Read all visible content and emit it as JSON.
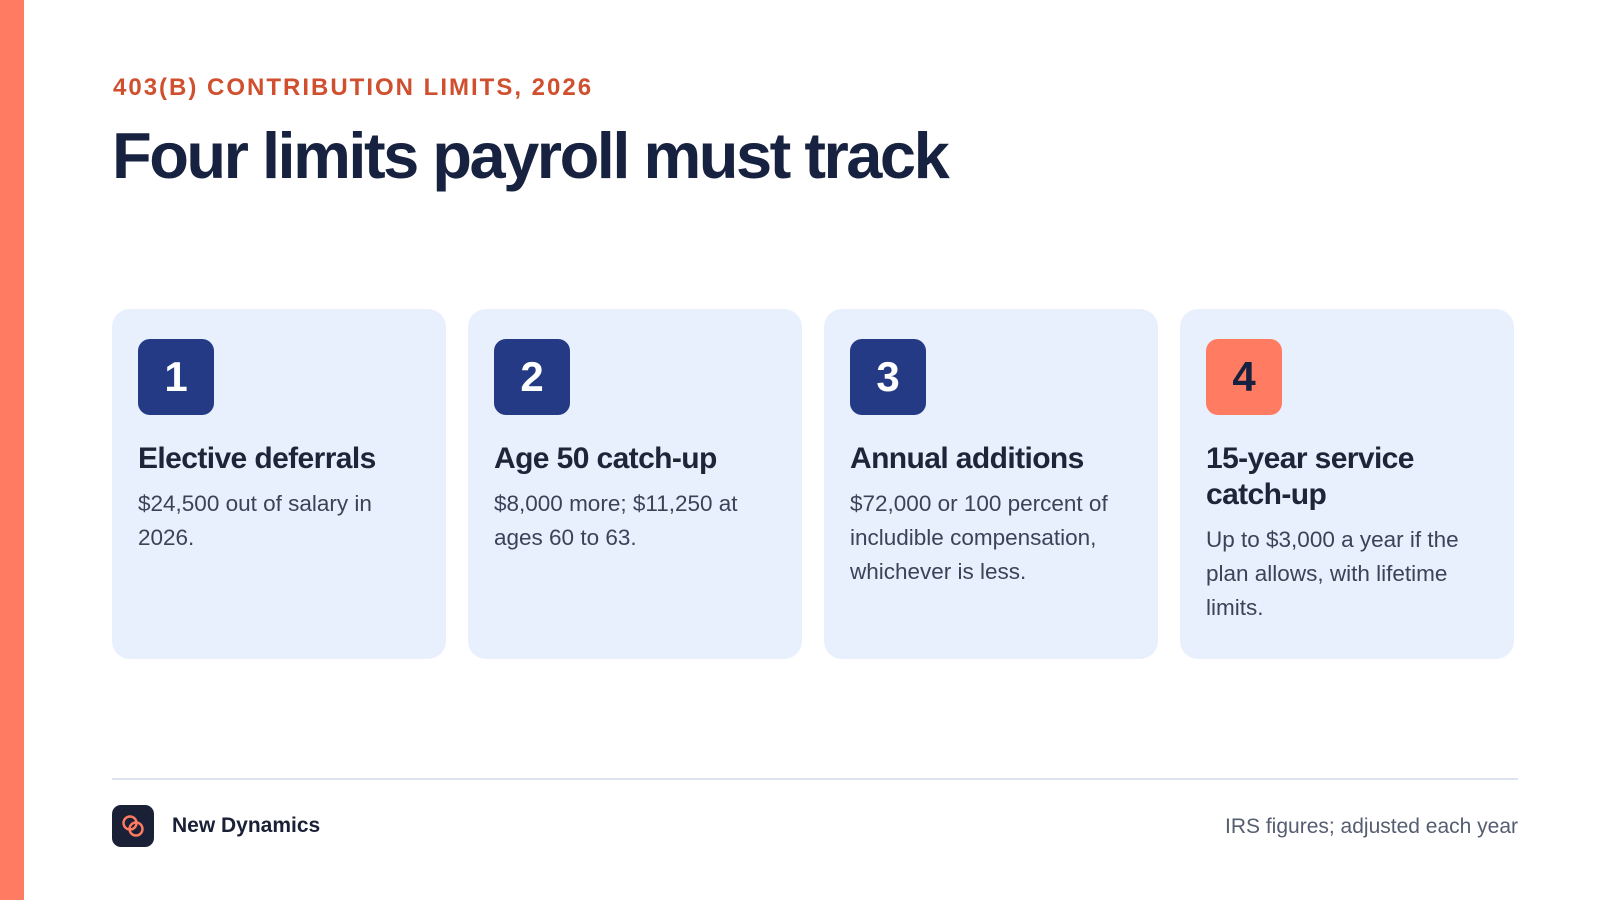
{
  "header": {
    "eyebrow": "403(B) CONTRIBUTION LIMITS, 2026",
    "title": "Four limits payroll must track"
  },
  "cards": [
    {
      "number": "1",
      "title": "Elective deferrals",
      "text": "$24,500 out of salary in 2026."
    },
    {
      "number": "2",
      "title": "Age 50 catch-up",
      "text": "$8,000 more; $11,250 at ages 60 to 63."
    },
    {
      "number": "3",
      "title": "Annual additions",
      "text": "$72,000 or 100 percent of includible compensation, whichever is less."
    },
    {
      "number": "4",
      "title": "15-year service catch-up",
      "text": "Up to $3,000 a year if the plan allows, with lifetime limits."
    }
  ],
  "footer": {
    "brand": "New Dynamics",
    "logo_icon": "linked-rings-icon",
    "note": "IRS figures; adjusted each year"
  },
  "colors": {
    "accent": "#ff7b61",
    "eyebrow": "#cf4f2f",
    "navy_badge": "#243a85",
    "card_background": "#e8effd",
    "heading": "#172240"
  }
}
